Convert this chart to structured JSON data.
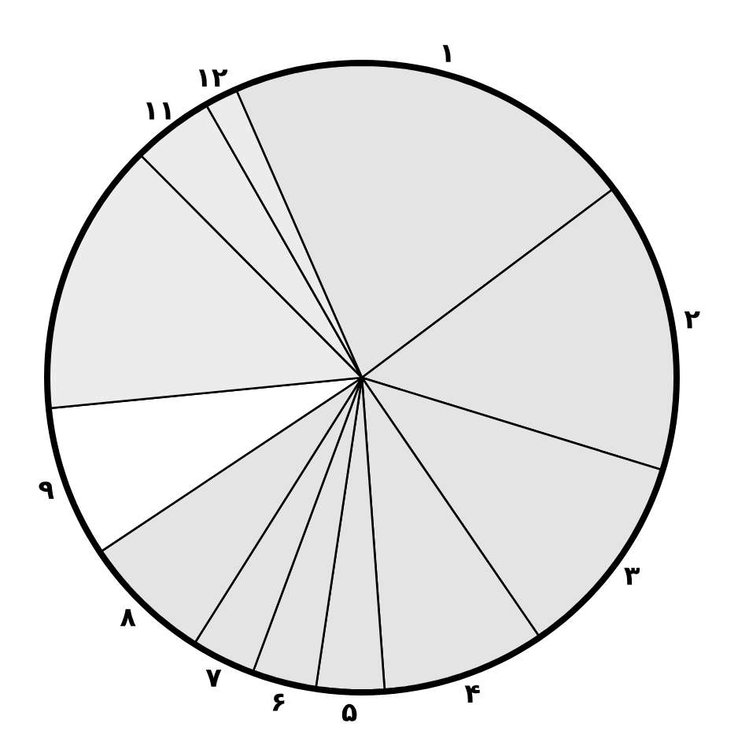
{
  "chart_data": {
    "type": "pie",
    "categories": [
      "۱",
      "۲",
      "۳",
      "۴",
      "۵",
      "۶",
      "۷",
      "۸",
      "۹",
      null,
      "۱۱",
      "۱۲"
    ],
    "values": [
      21.3,
      15.0,
      10.7,
      8.4,
      3.5,
      3.3,
      3.3,
      6.7,
      7.8,
      14.1,
      4.2,
      1.7
    ],
    "colors": [
      "#e4e4e4",
      "#e4e4e4",
      "#e4e4e4",
      "#e4e4e4",
      "#e4e4e4",
      "#e4e4e4",
      "#e4e4e4",
      "#e4e4e4",
      "#ffffff",
      "#ececec",
      "#ececec",
      "#ececec"
    ]
  }
}
